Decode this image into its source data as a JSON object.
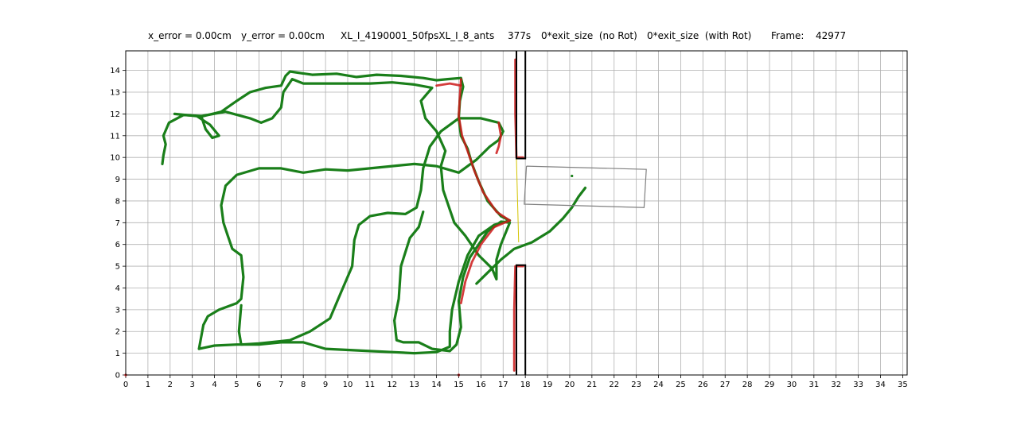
{
  "title_parts": {
    "x_error": "x_error = 0.00cm",
    "y_error": "y_error = 0.00cm",
    "experiment": "XL_I_4190001_50fpsXL_I_8_ants",
    "time": "377s",
    "exit_no_rot": "0*exit_size  (no Rot)",
    "exit_with_rot": "0*exit_size  (with Rot)",
    "frame_label": "Frame:",
    "frame_value": "42977"
  },
  "colors": {
    "trajectory": "#1a7f1a",
    "trajectory_dark": "#0e6a0e",
    "highlight": "#cc1a1a",
    "wall": "#000000",
    "load_box": "#808080",
    "line_yellow": "#d4c400",
    "grid": "#b0b0b0"
  },
  "chart_data": {
    "type": "line",
    "title": "x_error = 0.00cm   y_error = 0.00cm     XL_I_4190001_50fpsXL_I_8_ants     377s   0*exit_size  (no Rot)   0*exit_size  (with Rot)      Frame:    42977",
    "xlabel": "",
    "ylabel": "",
    "xlim": [
      0,
      35.2
    ],
    "ylim": [
      0,
      14.9
    ],
    "xticks": [
      "0",
      "1",
      "2",
      "3",
      "4",
      "5",
      "6",
      "7",
      "8",
      "9",
      "10",
      "11",
      "12",
      "13",
      "14",
      "15",
      "16",
      "17",
      "18",
      "19",
      "20",
      "21",
      "22",
      "23",
      "24",
      "25",
      "26",
      "27",
      "28",
      "29",
      "30",
      "31",
      "32",
      "33",
      "34",
      "35"
    ],
    "yticks": [
      "0",
      "1",
      "2",
      "3",
      "4",
      "5",
      "6",
      "7",
      "8",
      "9",
      "10",
      "11",
      "12",
      "13",
      "14"
    ],
    "grid": true,
    "series": [
      {
        "role": "trajectory",
        "points": [
          [
            1.65,
            9.7
          ],
          [
            1.7,
            10.1
          ],
          [
            1.8,
            10.6
          ],
          [
            1.7,
            11.0
          ],
          [
            1.95,
            11.6
          ],
          [
            2.6,
            11.95
          ],
          [
            3.5,
            11.9
          ],
          [
            4.3,
            12.1
          ],
          [
            5.0,
            12.6
          ],
          [
            5.6,
            13.0
          ],
          [
            6.3,
            13.2
          ],
          [
            7.0,
            13.3
          ],
          [
            7.2,
            13.75
          ],
          [
            7.4,
            13.95
          ],
          [
            8.4,
            13.8
          ],
          [
            9.5,
            13.85
          ],
          [
            10.4,
            13.7
          ],
          [
            11.3,
            13.8
          ],
          [
            12.4,
            13.75
          ],
          [
            13.4,
            13.65
          ],
          [
            14.0,
            13.55
          ],
          [
            14.5,
            13.6
          ],
          [
            15.1,
            13.65
          ],
          [
            15.2,
            13.25
          ],
          [
            15.05,
            12.6
          ],
          [
            15.0,
            11.8
          ],
          [
            15.1,
            11.0
          ],
          [
            15.4,
            10.4
          ],
          [
            15.6,
            9.7
          ],
          [
            15.9,
            8.9
          ],
          [
            16.3,
            8.0
          ],
          [
            16.9,
            7.3
          ],
          [
            17.3,
            7.1
          ],
          [
            16.6,
            6.9
          ],
          [
            15.9,
            6.4
          ],
          [
            15.4,
            5.5
          ],
          [
            15.0,
            4.3
          ],
          [
            14.7,
            3.0
          ],
          [
            14.6,
            2.0
          ],
          [
            14.6,
            1.3
          ],
          [
            14.0,
            1.05
          ],
          [
            13.0,
            1.0
          ],
          [
            12.0,
            1.05
          ],
          [
            11.0,
            1.1
          ],
          [
            10.0,
            1.15
          ],
          [
            9.0,
            1.2
          ],
          [
            8.0,
            1.5
          ],
          [
            7.0,
            1.5
          ],
          [
            6.0,
            1.4
          ],
          [
            5.0,
            1.4
          ],
          [
            4.0,
            1.35
          ],
          [
            3.3,
            1.2
          ]
        ]
      },
      {
        "role": "trajectory",
        "points": [
          [
            3.3,
            1.2
          ],
          [
            3.5,
            2.3
          ],
          [
            3.7,
            2.7
          ],
          [
            4.2,
            3.0
          ],
          [
            5.0,
            3.3
          ],
          [
            5.2,
            3.5
          ],
          [
            5.3,
            4.5
          ],
          [
            5.2,
            5.5
          ],
          [
            4.8,
            5.8
          ],
          [
            4.6,
            6.4
          ],
          [
            4.4,
            7.0
          ],
          [
            4.3,
            7.8
          ],
          [
            4.5,
            8.7
          ],
          [
            5.0,
            9.2
          ],
          [
            6.0,
            9.5
          ],
          [
            7.0,
            9.5
          ],
          [
            8.0,
            9.3
          ],
          [
            9.0,
            9.45
          ],
          [
            10.0,
            9.4
          ],
          [
            11.0,
            9.5
          ],
          [
            12.0,
            9.6
          ],
          [
            13.0,
            9.7
          ],
          [
            14.0,
            9.6
          ],
          [
            15.0,
            9.3
          ],
          [
            15.8,
            9.9
          ],
          [
            16.4,
            10.5
          ],
          [
            16.8,
            10.8
          ],
          [
            17.0,
            11.2
          ],
          [
            16.8,
            11.6
          ],
          [
            16.0,
            11.8
          ],
          [
            15.0,
            11.8
          ],
          [
            14.2,
            11.2
          ],
          [
            13.7,
            10.5
          ],
          [
            13.4,
            9.5
          ],
          [
            13.3,
            8.5
          ],
          [
            13.1,
            7.7
          ],
          [
            12.6,
            7.4
          ],
          [
            11.8,
            7.45
          ],
          [
            11.0,
            7.3
          ],
          [
            10.5,
            6.9
          ],
          [
            10.3,
            6.2
          ],
          [
            10.2,
            5.0
          ],
          [
            9.7,
            3.8
          ],
          [
            9.2,
            2.6
          ],
          [
            8.3,
            2.0
          ],
          [
            7.4,
            1.6
          ],
          [
            6.0,
            1.45
          ],
          [
            5.2,
            1.4
          ],
          [
            5.1,
            2.0
          ],
          [
            5.2,
            3.2
          ]
        ]
      },
      {
        "role": "trajectory",
        "points": [
          [
            2.2,
            12.0
          ],
          [
            3.2,
            11.9
          ],
          [
            3.8,
            11.5
          ],
          [
            4.2,
            11.0
          ],
          [
            3.9,
            10.9
          ],
          [
            3.6,
            11.3
          ],
          [
            3.4,
            11.9
          ],
          [
            4.5,
            12.1
          ],
          [
            5.6,
            11.8
          ],
          [
            6.1,
            11.6
          ],
          [
            6.6,
            11.8
          ],
          [
            7.0,
            12.3
          ],
          [
            7.1,
            13.0
          ],
          [
            7.5,
            13.6
          ],
          [
            8.0,
            13.4
          ],
          [
            9.0,
            13.4
          ],
          [
            10.0,
            13.4
          ],
          [
            11.0,
            13.4
          ],
          [
            12.0,
            13.45
          ],
          [
            13.0,
            13.35
          ],
          [
            13.8,
            13.2
          ],
          [
            13.3,
            12.6
          ],
          [
            13.5,
            11.8
          ],
          [
            14.0,
            11.2
          ],
          [
            14.4,
            10.3
          ],
          [
            14.2,
            9.6
          ],
          [
            14.3,
            8.5
          ],
          [
            14.8,
            7.0
          ],
          [
            15.3,
            6.4
          ],
          [
            15.9,
            5.5
          ],
          [
            16.5,
            4.9
          ],
          [
            16.7,
            4.4
          ],
          [
            16.7,
            5.3
          ],
          [
            16.9,
            6.0
          ],
          [
            17.3,
            7.0
          ],
          [
            16.9,
            7.05
          ],
          [
            16.3,
            6.6
          ],
          [
            15.9,
            6.0
          ],
          [
            15.5,
            5.4
          ],
          [
            15.2,
            4.5
          ],
          [
            15.0,
            3.4
          ],
          [
            15.1,
            2.2
          ],
          [
            14.9,
            1.4
          ],
          [
            14.6,
            1.1
          ],
          [
            13.8,
            1.2
          ],
          [
            13.2,
            1.5
          ],
          [
            12.5,
            1.5
          ],
          [
            12.2,
            1.6
          ],
          [
            12.1,
            2.5
          ],
          [
            12.3,
            3.5
          ],
          [
            12.4,
            5.0
          ],
          [
            12.8,
            6.3
          ],
          [
            13.2,
            6.8
          ],
          [
            13.4,
            7.5
          ]
        ]
      },
      {
        "role": "trajectory",
        "points": [
          [
            15.8,
            4.2
          ],
          [
            16.3,
            4.7
          ],
          [
            16.9,
            5.3
          ],
          [
            17.5,
            5.8
          ],
          [
            18.3,
            6.1
          ],
          [
            19.1,
            6.6
          ],
          [
            19.7,
            7.2
          ],
          [
            20.1,
            7.7
          ],
          [
            20.4,
            8.2
          ],
          [
            20.7,
            8.6
          ]
        ]
      },
      {
        "role": "highlight",
        "points": [
          [
            15.1,
            13.6
          ],
          [
            15.05,
            12.8
          ],
          [
            15.0,
            11.9
          ],
          [
            15.15,
            11.0
          ],
          [
            15.4,
            10.3
          ],
          [
            15.7,
            9.4
          ],
          [
            16.1,
            8.4
          ],
          [
            16.7,
            7.5
          ],
          [
            17.3,
            7.1
          ],
          [
            16.6,
            6.8
          ],
          [
            16.0,
            6.0
          ],
          [
            15.6,
            5.2
          ],
          [
            15.3,
            4.3
          ],
          [
            15.1,
            3.3
          ]
        ]
      },
      {
        "role": "highlight",
        "points": [
          [
            14.0,
            13.3
          ],
          [
            14.6,
            13.4
          ],
          [
            15.1,
            13.3
          ]
        ]
      },
      {
        "role": "highlight",
        "points": [
          [
            16.8,
            11.6
          ],
          [
            16.9,
            11.0
          ],
          [
            16.8,
            10.5
          ],
          [
            16.7,
            10.2
          ]
        ]
      },
      {
        "role": "highlight",
        "points": [
          [
            17.55,
            14.5
          ],
          [
            17.55,
            12.0
          ],
          [
            17.6,
            10.0
          ],
          [
            17.9,
            10.0
          ]
        ]
      },
      {
        "role": "highlight",
        "points": [
          [
            17.9,
            5.0
          ],
          [
            17.55,
            5.0
          ],
          [
            17.5,
            3.0
          ],
          [
            17.5,
            0.2
          ]
        ]
      }
    ],
    "walls": [
      {
        "x": [
          17.6,
          17.6,
          18.0,
          18.0
        ],
        "y": [
          14.9,
          9.95,
          9.95,
          14.9
        ]
      },
      {
        "x": [
          17.6,
          17.6,
          18.0,
          18.0
        ],
        "y": [
          0.0,
          5.05,
          5.05,
          0.0
        ]
      }
    ],
    "load_box": {
      "x": [
        18.05,
        23.45,
        23.35,
        17.95,
        18.05
      ],
      "y": [
        9.6,
        9.45,
        7.7,
        7.85,
        9.6
      ]
    },
    "connector_line": {
      "x": [
        17.6,
        17.7
      ],
      "y": [
        9.95,
        6.1
      ]
    },
    "isolated_points": [
      {
        "x": 20.1,
        "y": 9.15
      },
      {
        "x": 15.0,
        "y": 0.0
      },
      {
        "x": 0.0,
        "y": 0.0
      }
    ]
  }
}
